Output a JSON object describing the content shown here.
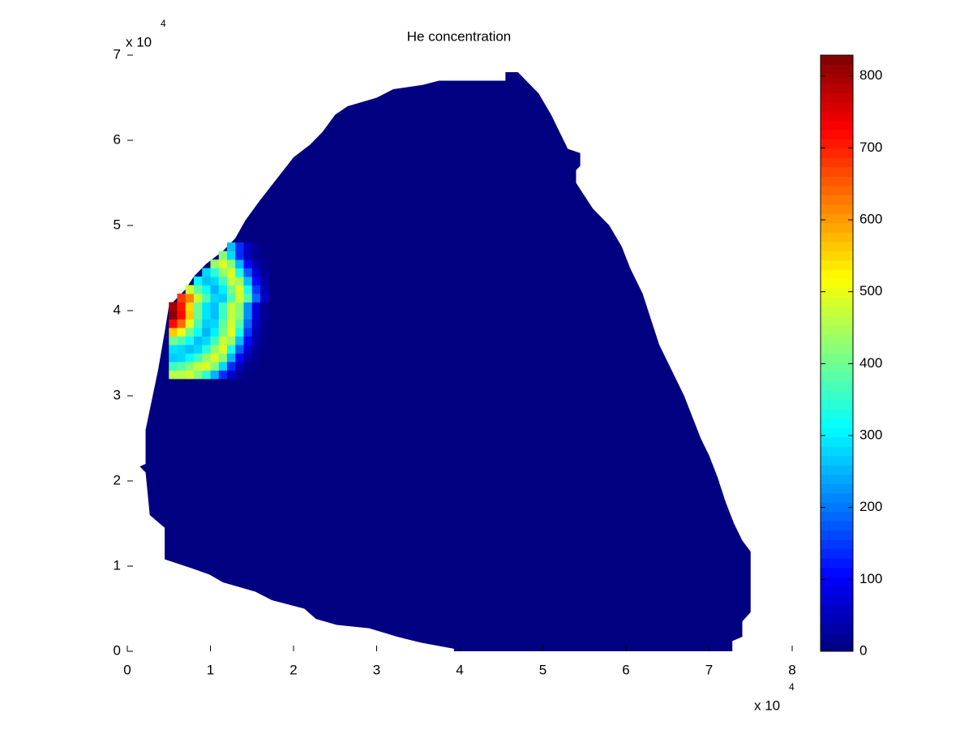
{
  "chart_data": {
    "type": "heatmap",
    "title": "He concentration",
    "xlim": [
      0,
      8
    ],
    "xticks": [
      0,
      1,
      2,
      3,
      4,
      5,
      6,
      7,
      8
    ],
    "ylim": [
      0,
      7
    ],
    "yticks": [
      0,
      1,
      2,
      3,
      4,
      5,
      6,
      7
    ],
    "x_multiplier": {
      "base": "x 10",
      "exponent": "4"
    },
    "y_multiplier": {
      "base": "x 10",
      "exponent": "4"
    },
    "colormap": "jet",
    "clim": [
      0,
      829
    ],
    "cticks": [
      0,
      100,
      200,
      300,
      400,
      500,
      600,
      700,
      800
    ],
    "domain": {
      "value": 0,
      "x": [
        0.45,
        0.76,
        0.99,
        1.15,
        1.54,
        1.74,
        2.13,
        2.27,
        2.52,
        2.91,
        3.25,
        3.54,
        3.93,
        3.93,
        7.28,
        7.28,
        7.4,
        7.4,
        7.5,
        7.5,
        7.4,
        7.3,
        7.2,
        7.1,
        7.0,
        6.9,
        6.8,
        6.7,
        6.55,
        6.4,
        6.3,
        6.2,
        6.05,
        5.95,
        5.8,
        5.6,
        5.5,
        5.4,
        5.4,
        5.45,
        5.45,
        5.3,
        5.2,
        5.1,
        4.95,
        4.8,
        4.7,
        4.55,
        4.55,
        3.75,
        3.55,
        3.2,
        3.0,
        2.65,
        2.5,
        2.35,
        2.2,
        2.0,
        1.8,
        1.6,
        1.42,
        1.3,
        1.15,
        0.95,
        0.8,
        0.7,
        0.5,
        0.45,
        0.37,
        0.22,
        0.22,
        0.15,
        0.22,
        0.27,
        0.45
      ],
      "y": [
        1.08,
        0.98,
        0.9,
        0.81,
        0.7,
        0.6,
        0.5,
        0.38,
        0.31,
        0.27,
        0.17,
        0.1,
        0.03,
        0,
        0,
        0.12,
        0.17,
        0.35,
        0.46,
        1.17,
        1.3,
        1.5,
        1.75,
        2.05,
        2.3,
        2.5,
        2.75,
        3.0,
        3.3,
        3.6,
        3.9,
        4.2,
        4.5,
        4.75,
        5.0,
        5.2,
        5.35,
        5.5,
        5.65,
        5.7,
        5.85,
        5.9,
        6.1,
        6.3,
        6.55,
        6.7,
        6.8,
        6.8,
        6.7,
        6.7,
        6.65,
        6.6,
        6.5,
        6.4,
        6.3,
        6.1,
        5.95,
        5.8,
        5.55,
        5.3,
        5.06,
        4.85,
        4.7,
        4.55,
        4.4,
        4.25,
        4.05,
        3.75,
        3.3,
        2.6,
        2.2,
        2.17,
        2.1,
        1.6,
        1.45
      ]
    },
    "cells": [
      {
        "y": 3.2,
        "x0": 0.5,
        "values": [
          460,
          460,
          480,
          420,
          350,
          250,
          140,
          60,
          20,
          5
        ]
      },
      {
        "y": 3.3,
        "x0": 0.5,
        "values": [
          360,
          380,
          420,
          470,
          490,
          420,
          280,
          140,
          50,
          15,
          5
        ]
      },
      {
        "y": 3.4,
        "x0": 0.5,
        "values": [
          270,
          280,
          310,
          360,
          430,
          490,
          420,
          250,
          110,
          40,
          10
        ]
      },
      {
        "y": 3.5,
        "x0": 0.5,
        "values": [
          290,
          280,
          260,
          280,
          340,
          430,
          490,
          330,
          180,
          70,
          20,
          5
        ]
      },
      {
        "y": 3.6,
        "x0": 0.5,
        "values": [
          400,
          370,
          320,
          260,
          280,
          360,
          470,
          440,
          260,
          110,
          35,
          8
        ]
      },
      {
        "y": 3.7,
        "x0": 0.5,
        "values": [
          560,
          500,
          400,
          320,
          250,
          300,
          410,
          490,
          330,
          150,
          45,
          10
        ]
      },
      {
        "y": 3.8,
        "x0": 0.5,
        "values": [
          720,
          640,
          500,
          370,
          270,
          280,
          390,
          480,
          380,
          190,
          60,
          12
        ]
      },
      {
        "y": 3.9,
        "x0": 0.5,
        "values": [
          820,
          720,
          560,
          400,
          290,
          260,
          360,
          470,
          420,
          220,
          75,
          15
        ]
      },
      {
        "y": 4.0,
        "x0": 0.5,
        "values": [
          800,
          710,
          550,
          400,
          290,
          260,
          360,
          470,
          420,
          220,
          75,
          15
        ]
      },
      {
        "y": 4.1,
        "x0": 0.6,
        "values": [
          680,
          620,
          480,
          370,
          280,
          270,
          380,
          480,
          380,
          190,
          60
        ]
      },
      {
        "y": 4.2,
        "x0": 0.7,
        "values": [
          480,
          390,
          320,
          250,
          300,
          410,
          490,
          330,
          150,
          45
        ]
      },
      {
        "y": 4.3,
        "x0": 0.8,
        "values": [
          310,
          260,
          280,
          360,
          470,
          440,
          260,
          110,
          35
        ]
      },
      {
        "y": 4.4,
        "x0": 0.9,
        "values": [
          280,
          340,
          430,
          490,
          330,
          180,
          70,
          20
        ]
      },
      {
        "y": 4.5,
        "x0": 1.0,
        "values": [
          430,
          490,
          420,
          250,
          110,
          40,
          10
        ]
      },
      {
        "y": 4.6,
        "x0": 1.1,
        "values": [
          420,
          280,
          140,
          50,
          15,
          5
        ]
      },
      {
        "y": 4.7,
        "x0": 1.2,
        "values": [
          260,
          140,
          60,
          15,
          5
        ]
      }
    ]
  }
}
